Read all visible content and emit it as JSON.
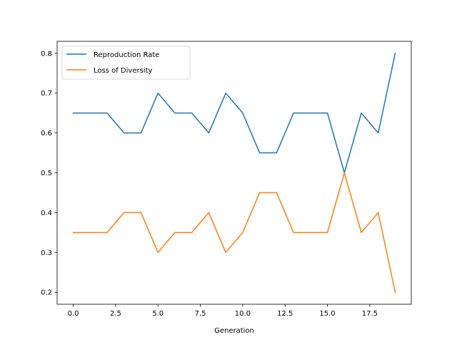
{
  "chart_data": {
    "type": "line",
    "title": "",
    "xlabel": "Generation",
    "ylabel": "",
    "x": [
      0,
      1,
      2,
      3,
      4,
      5,
      6,
      7,
      8,
      9,
      10,
      11,
      12,
      13,
      14,
      15,
      16,
      17,
      18,
      19
    ],
    "xlim": [
      -0.95,
      19.95
    ],
    "ylim": [
      0.17,
      0.83
    ],
    "xticks": [
      0.0,
      2.5,
      5.0,
      7.5,
      10.0,
      12.5,
      15.0,
      17.5
    ],
    "xtick_labels": [
      "0.0",
      "2.5",
      "5.0",
      "7.5",
      "10.0",
      "12.5",
      "15.0",
      "17.5"
    ],
    "yticks": [
      0.2,
      0.3,
      0.4,
      0.5,
      0.6,
      0.7,
      0.8
    ],
    "ytick_labels": [
      "0.2",
      "0.3",
      "0.4",
      "0.5",
      "0.6",
      "0.7",
      "0.8"
    ],
    "grid": false,
    "legend_position": "top-left",
    "series": [
      {
        "name": "Reproduction Rate",
        "color": "#1f77b4",
        "values": [
          0.65,
          0.65,
          0.65,
          0.6,
          0.6,
          0.7,
          0.65,
          0.65,
          0.6,
          0.7,
          0.65,
          0.55,
          0.55,
          0.65,
          0.65,
          0.65,
          0.5,
          0.65,
          0.6,
          0.8
        ]
      },
      {
        "name": "Loss of Diversity",
        "color": "#ff7f0e",
        "values": [
          0.35,
          0.35,
          0.35,
          0.4,
          0.4,
          0.3,
          0.35,
          0.35,
          0.4,
          0.3,
          0.35,
          0.45,
          0.45,
          0.35,
          0.35,
          0.35,
          0.5,
          0.35,
          0.4,
          0.2
        ]
      }
    ]
  }
}
